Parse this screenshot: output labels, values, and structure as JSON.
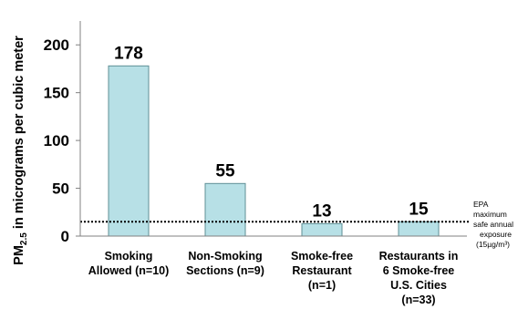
{
  "chart_data": {
    "type": "bar",
    "ylabel": "PM2.5 in micrograms per cubic meter",
    "ylabel_main": "PM",
    "ylabel_sub": "2.5",
    "ylabel_rest": " in micrograms per cubic meter",
    "ylim": [
      0,
      225
    ],
    "yticks": [
      0,
      50,
      100,
      150,
      200
    ],
    "categories": [
      [
        "Smoking",
        "Allowed (n=10)"
      ],
      [
        "Non-Smoking",
        "Sections (n=9)"
      ],
      [
        "Smoke-free",
        "Restaurant",
        "(n=1)"
      ],
      [
        "Restaurants in",
        "6 Smoke-free",
        "U.S. Cities",
        "(n=33)"
      ]
    ],
    "values": [
      178,
      55,
      13,
      15
    ],
    "data_labels": [
      "178",
      "55",
      "13",
      "15"
    ],
    "bar_color": "#b7e0e6",
    "bar_border": "#5f8f96",
    "reference_line": {
      "value": 15,
      "style": "dotted",
      "label": [
        "EPA",
        "maximum",
        "safe annual",
        "exposure",
        "(15µg/m³)"
      ]
    }
  }
}
